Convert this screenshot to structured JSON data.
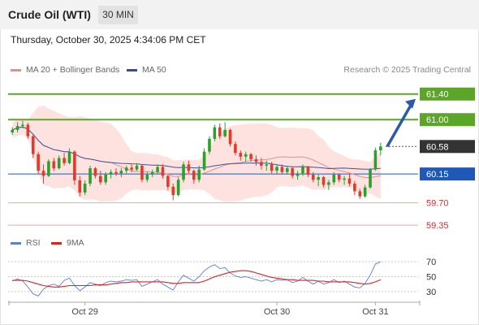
{
  "header": {
    "title": "Crude Oil (WTI)",
    "timeframe": "30 MIN"
  },
  "timestamp": "Thursday, October 30, 2025 4:34:06 PM CET",
  "legend": {
    "bollinger": "MA 20 + Bollinger Bands",
    "ma50": "MA 50",
    "credit": "Research © 2025 Trading Central",
    "rsi": "RSI",
    "rsi_ma": "9MA"
  },
  "colors": {
    "bullish": "#2ca02c",
    "bearish": "#e33a2a",
    "band_fill": "#fde2e0",
    "ma20": "#e89090",
    "ma50": "#3355aa",
    "resistance": "#5ba529",
    "pivot": "#1f58b8",
    "support": "#f2a3a3",
    "price": "#333333",
    "arrow": "#2a5aa8",
    "rsi_line": "#5a7fd8",
    "rsi_ma_line": "#e02020"
  },
  "chart_data": [
    {
      "type": "candlestick",
      "title": "Crude Oil (WTI)",
      "timeframe": "30 MIN",
      "x_ticks": [
        "Oct 29",
        "Oct 30",
        "Oct 31"
      ],
      "ylim": [
        59.25,
        61.6
      ],
      "levels": [
        {
          "value": 61.4,
          "label": "61.40",
          "role": "resistance"
        },
        {
          "value": 61.0,
          "label": "61.00",
          "role": "resistance"
        },
        {
          "value": 60.58,
          "label": "60.58",
          "role": "price"
        },
        {
          "value": 60.15,
          "label": "60.15",
          "role": "pivot"
        },
        {
          "value": 59.7,
          "label": "59.70",
          "role": "support"
        },
        {
          "value": 59.35,
          "label": "59.35",
          "role": "support"
        }
      ],
      "target_arrow": {
        "from": 60.58,
        "to": 61.4
      },
      "candles": [
        [
          60.8,
          60.88,
          60.76,
          60.84
        ],
        [
          60.84,
          60.96,
          60.8,
          60.9
        ],
        [
          60.9,
          60.98,
          60.86,
          60.92
        ],
        [
          60.92,
          60.95,
          60.7,
          60.74
        ],
        [
          60.74,
          60.76,
          60.4,
          60.46
        ],
        [
          60.46,
          60.5,
          60.15,
          60.2
        ],
        [
          60.2,
          60.3,
          60.0,
          60.12
        ],
        [
          60.12,
          60.38,
          60.1,
          60.35
        ],
        [
          60.35,
          60.4,
          60.2,
          60.24
        ],
        [
          60.24,
          60.44,
          60.22,
          60.4
        ],
        [
          60.4,
          60.48,
          60.28,
          60.32
        ],
        [
          60.32,
          60.55,
          60.3,
          60.5
        ],
        [
          60.5,
          60.52,
          59.98,
          60.05
        ],
        [
          60.05,
          60.12,
          59.8,
          59.86
        ],
        [
          59.86,
          60.05,
          59.82,
          60.0
        ],
        [
          60.0,
          60.28,
          59.96,
          60.24
        ],
        [
          60.24,
          60.26,
          60.08,
          60.12
        ],
        [
          60.12,
          60.2,
          59.98,
          60.02
        ],
        [
          60.02,
          60.18,
          59.98,
          60.14
        ],
        [
          60.14,
          60.22,
          60.08,
          60.18
        ],
        [
          60.18,
          60.24,
          60.12,
          60.16
        ],
        [
          60.16,
          60.24,
          60.1,
          60.2
        ],
        [
          60.2,
          60.28,
          60.16,
          60.25
        ],
        [
          60.25,
          60.3,
          60.18,
          60.22
        ],
        [
          60.22,
          60.32,
          60.2,
          60.28
        ],
        [
          60.28,
          60.3,
          60.02,
          60.06
        ],
        [
          60.06,
          60.18,
          60.02,
          60.14
        ],
        [
          60.14,
          60.22,
          60.1,
          60.18
        ],
        [
          60.18,
          60.3,
          60.16,
          60.26
        ],
        [
          60.26,
          60.3,
          60.08,
          60.12
        ],
        [
          60.12,
          60.14,
          59.9,
          59.95
        ],
        [
          59.95,
          60.0,
          59.74,
          59.82
        ],
        [
          59.82,
          60.1,
          59.8,
          60.06
        ],
        [
          60.06,
          60.34,
          60.02,
          60.3
        ],
        [
          60.3,
          60.36,
          60.16,
          60.2
        ],
        [
          60.2,
          60.22,
          60.0,
          60.06
        ],
        [
          60.06,
          60.28,
          60.02,
          60.22
        ],
        [
          60.22,
          60.55,
          60.2,
          60.5
        ],
        [
          60.5,
          60.74,
          60.46,
          60.7
        ],
        [
          60.7,
          60.92,
          60.66,
          60.88
        ],
        [
          60.88,
          60.94,
          60.7,
          60.74
        ],
        [
          60.74,
          60.96,
          60.72,
          60.84
        ],
        [
          60.84,
          60.86,
          60.58,
          60.62
        ],
        [
          60.62,
          60.66,
          60.44,
          60.48
        ],
        [
          60.48,
          60.52,
          60.36,
          60.42
        ],
        [
          60.42,
          60.5,
          60.34,
          60.46
        ],
        [
          60.46,
          60.48,
          60.34,
          60.38
        ],
        [
          60.38,
          60.44,
          60.28,
          60.34
        ],
        [
          60.34,
          60.4,
          60.22,
          60.28
        ],
        [
          60.28,
          60.36,
          60.2,
          60.3
        ],
        [
          60.3,
          60.34,
          60.16,
          60.2
        ],
        [
          60.2,
          60.3,
          60.14,
          60.26
        ],
        [
          60.26,
          60.3,
          60.14,
          60.18
        ],
        [
          60.18,
          60.28,
          60.14,
          60.24
        ],
        [
          60.24,
          60.26,
          60.08,
          60.12
        ],
        [
          60.12,
          60.2,
          60.06,
          60.16
        ],
        [
          60.16,
          60.3,
          60.12,
          60.26
        ],
        [
          60.26,
          60.28,
          60.1,
          60.14
        ],
        [
          60.14,
          60.18,
          60.02,
          60.06
        ],
        [
          60.06,
          60.14,
          59.96,
          60.1
        ],
        [
          60.1,
          60.12,
          59.94,
          59.98
        ],
        [
          59.98,
          60.06,
          59.9,
          60.02
        ],
        [
          60.02,
          60.18,
          59.98,
          60.14
        ],
        [
          60.14,
          60.16,
          60.02,
          60.06
        ],
        [
          60.06,
          60.12,
          59.98,
          60.08
        ],
        [
          60.08,
          60.16,
          59.96,
          60.0
        ],
        [
          60.0,
          60.04,
          59.82,
          59.88
        ],
        [
          59.88,
          59.92,
          59.76,
          59.8
        ],
        [
          59.8,
          59.98,
          59.78,
          59.94
        ],
        [
          59.94,
          60.24,
          59.92,
          60.22
        ],
        [
          60.22,
          60.56,
          60.2,
          60.52
        ],
        [
          60.52,
          60.64,
          60.44,
          60.58
        ]
      ]
    },
    {
      "type": "line",
      "title": "RSI",
      "y_ticks": [
        70,
        50,
        30
      ],
      "ylim": [
        20,
        80
      ],
      "series": [
        {
          "name": "RSI",
          "values": [
            44,
            47,
            44,
            36,
            27,
            24,
            33,
            38,
            40,
            37,
            45,
            48,
            38,
            31,
            36,
            42,
            40,
            38,
            42,
            44,
            43,
            44,
            46,
            45,
            46,
            37,
            40,
            43,
            46,
            40,
            36,
            32,
            43,
            52,
            48,
            44,
            50,
            58,
            63,
            66,
            61,
            62,
            55,
            51,
            49,
            50,
            48,
            46,
            44,
            46,
            43,
            46,
            45,
            46,
            42,
            44,
            49,
            44,
            40,
            44,
            40,
            42,
            46,
            42,
            44,
            40,
            36,
            35,
            41,
            52,
            67,
            70
          ]
        },
        {
          "name": "9MA",
          "values": [
            45,
            45,
            45,
            44,
            42,
            40,
            38,
            37,
            36,
            36,
            37,
            38,
            38,
            38,
            38,
            38,
            39,
            39,
            39,
            40,
            41,
            42,
            42,
            43,
            43,
            43,
            43,
            43,
            43,
            43,
            42,
            41,
            41,
            42,
            42,
            42,
            42,
            44,
            47,
            50,
            52,
            54,
            56,
            57,
            58,
            58,
            57,
            55,
            53,
            51,
            49,
            48,
            47,
            46,
            46,
            45,
            45,
            45,
            45,
            44,
            44,
            43,
            43,
            43,
            43,
            43,
            42,
            41,
            40,
            41,
            43,
            46
          ]
        }
      ]
    }
  ]
}
